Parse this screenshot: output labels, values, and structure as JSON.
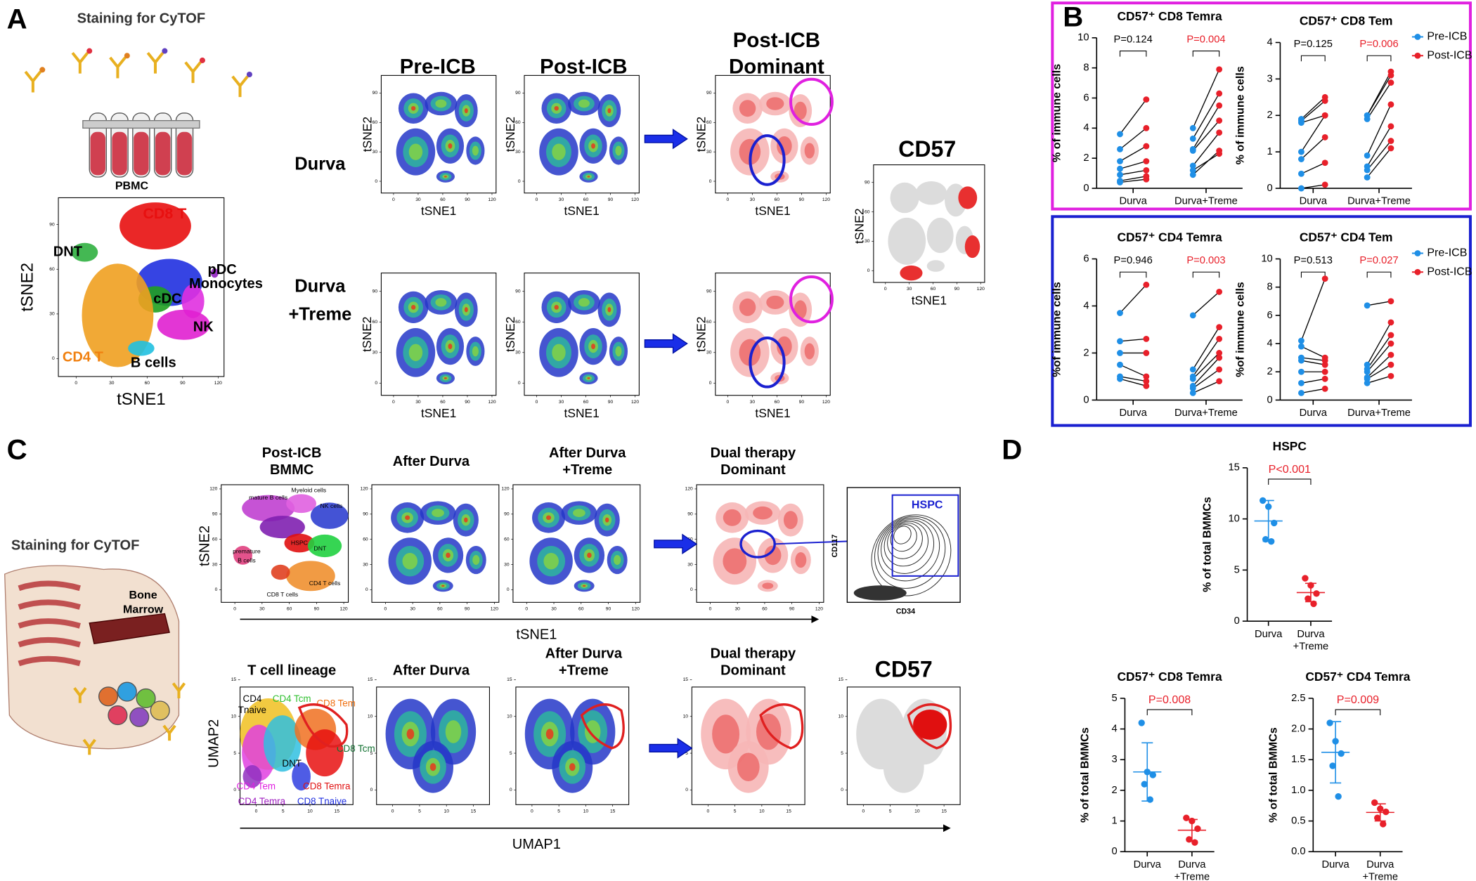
{
  "panels": {
    "a": {
      "letter": "A",
      "staining": "Staining for CyTOF",
      "pbmc": "PBMC",
      "tsne1": "tSNE1",
      "tsne2": "tSNE2",
      "clusters": [
        "CD8 T",
        "DNT",
        "pDC",
        "Monocytes",
        "cDC",
        "NK",
        "CD4 T",
        "B cells"
      ],
      "xticks": [
        0,
        30,
        60,
        90,
        120
      ],
      "yticks": [
        0,
        30,
        60,
        90
      ],
      "xlim": [
        -15,
        125
      ],
      "ylim": [
        -12,
        108
      ],
      "columns": [
        "Pre-ICB",
        "Post-ICB"
      ],
      "dominant": [
        "Post-ICB",
        "Dominant"
      ],
      "rows": [
        "Durva",
        [
          "Durva",
          "+Treme"
        ]
      ],
      "cd57": "CD57"
    },
    "b": {
      "letter": "B"
    },
    "c": {
      "letter": "C",
      "staining": "Staining for CyTOF",
      "bone_marrow": [
        "Bone",
        "Marrow"
      ],
      "row1_headers": [
        [
          "Post-ICB",
          "BMMC"
        ],
        [
          "After Durva"
        ],
        [
          "After Durva",
          "+Treme"
        ],
        [
          "Dual therapy",
          "Dominant"
        ]
      ],
      "row2_headers": [
        [
          "T cell lineage"
        ],
        [
          "After Durva"
        ],
        [
          "After Durva",
          "+Treme"
        ],
        [
          "Dual therapy",
          "Dominant"
        ],
        [
          "CD57"
        ]
      ],
      "bmmc_clusters": [
        "mature B cells",
        "Myeloid cells",
        "NK cells",
        "HSPC",
        "DNT",
        "premature",
        "B cells",
        "CD4 T cells",
        "CD8 T cells"
      ],
      "flow": {
        "gate": "HSPC",
        "y_label": "CD117",
        "x_label": "CD34"
      },
      "tsne1": "tSNE1",
      "tsne2": "tSNE2",
      "umap1": "UMAP1",
      "umap2": "UMAP2",
      "tsne_ticks": [
        0,
        30,
        60,
        90,
        120
      ],
      "tsne_lim": [
        -15,
        125
      ],
      "umap_ticks": [
        0,
        5,
        10,
        15
      ],
      "umap_xlim": [
        -3,
        18
      ],
      "umap_ylim": [
        -2,
        14
      ],
      "tcell_clusters": [
        "CD4",
        "Tnaive",
        "CD4 Tcm",
        "CD8 Tem",
        "CD8 Tcm",
        "DNT",
        "CD4 Tem",
        "CD8 Temra",
        "CD4 Temra",
        "CD8 Tnaive"
      ]
    },
    "d": {
      "letter": "D"
    }
  },
  "chart_data": [
    {
      "type": "paired",
      "title": "CD57⁺ CD8 Temra",
      "y_label": "% of immune cells",
      "categories": [
        "Durva",
        "Durva+Treme"
      ],
      "ylim": [
        0,
        10
      ],
      "yticks": [
        0,
        2,
        4,
        6,
        8,
        10
      ],
      "legend": false,
      "series": [
        {
          "color": "#1f8fe6",
          "values": [
            [
              3.6,
              2.6,
              1.8,
              1.3,
              0.9,
              0.5,
              0.4
            ],
            [
              4.0,
              3.3,
              2.6,
              2.5,
              1.5,
              0.9,
              1.2
            ]
          ]
        },
        {
          "color": "#e8202a",
          "values": [
            [
              5.9,
              4.0,
              2.8,
              1.8,
              1.2,
              0.8,
              0.6
            ],
            [
              7.9,
              6.3,
              5.5,
              4.5,
              3.7,
              2.5,
              2.3
            ]
          ]
        }
      ],
      "annotations": [
        {
          "text": "P=0.124",
          "color": "#000000"
        },
        {
          "text": "P=0.004",
          "color": "#e8202a"
        }
      ]
    },
    {
      "type": "paired",
      "title": "CD57⁺ CD8 Tem",
      "y_label": "% of immune cells",
      "categories": [
        "Durva",
        "Durva+Treme"
      ],
      "ylim": [
        0,
        4
      ],
      "yticks": [
        0,
        1,
        2,
        3,
        4
      ],
      "legend": true,
      "series": [
        {
          "name": "Pre-ICB",
          "color": "#1f8fe6",
          "values": [
            [
              1.9,
              1.85,
              1.8,
              1.0,
              0.8,
              0.4,
              0.0
            ],
            [
              2.0,
              2.0,
              1.9,
              0.9,
              0.6,
              0.5,
              0.3
            ]
          ]
        },
        {
          "name": "Post-ICB",
          "color": "#e8202a",
          "values": [
            [
              2.5,
              2.4,
              2.0,
              2.0,
              1.4,
              0.7,
              0.1
            ],
            [
              3.2,
              3.1,
              2.9,
              2.3,
              1.7,
              1.3,
              1.1
            ]
          ]
        }
      ],
      "annotations": [
        {
          "text": "P=0.125",
          "color": "#000000"
        },
        {
          "text": "P=0.006",
          "color": "#e8202a"
        }
      ]
    },
    {
      "type": "paired",
      "title": "CD57⁺ CD4 Temra",
      "y_label": "%of immune cells",
      "categories": [
        "Durva",
        "Durva+Treme"
      ],
      "ylim": [
        0,
        6
      ],
      "yticks": [
        0,
        2,
        4,
        6
      ],
      "legend": false,
      "series": [
        {
          "color": "#1f8fe6",
          "values": [
            [
              3.7,
              2.5,
              2.0,
              1.5,
              1.0,
              0.9
            ],
            [
              3.6,
              1.3,
              1.0,
              0.9,
              0.6,
              0.5,
              0.3
            ]
          ]
        },
        {
          "color": "#e8202a",
          "values": [
            [
              4.9,
              2.6,
              2.0,
              1.0,
              0.8,
              0.6
            ],
            [
              4.6,
              3.1,
              2.6,
              2.0,
              1.8,
              1.3,
              0.8
            ]
          ]
        }
      ],
      "annotations": [
        {
          "text": "P=0.946",
          "color": "#000000"
        },
        {
          "text": "P=0.003",
          "color": "#e8202a"
        }
      ]
    },
    {
      "type": "paired",
      "title": "CD57⁺ CD4 Tem",
      "y_label": "%of immune cells",
      "categories": [
        "Durva",
        "Durva+Treme"
      ],
      "ylim": [
        0,
        10
      ],
      "yticks": [
        0,
        2,
        4,
        6,
        8,
        10
      ],
      "legend": true,
      "series": [
        {
          "name": "Pre-ICB",
          "color": "#1f8fe6",
          "values": [
            [
              4.2,
              3.8,
              3.0,
              2.8,
              2.0,
              1.2,
              0.5
            ],
            [
              6.7,
              2.5,
              2.2,
              2.0,
              1.6,
              1.5,
              1.2
            ]
          ]
        },
        {
          "name": "Post-ICB",
          "color": "#e8202a",
          "values": [
            [
              8.6,
              3.0,
              2.8,
              2.5,
              2.0,
              1.5,
              0.8
            ],
            [
              7.0,
              5.5,
              4.6,
              4.0,
              3.2,
              2.5,
              1.7
            ]
          ]
        }
      ],
      "annotations": [
        {
          "text": "P=0.513",
          "color": "#000000"
        },
        {
          "text": "P=0.027",
          "color": "#e8202a"
        }
      ]
    },
    {
      "type": "strip",
      "title": "HSPC",
      "y_label": "% of total BMMCs",
      "categories": [
        "Durva",
        "Durva +Treme"
      ],
      "ylim": [
        0,
        15
      ],
      "yticks": [
        0,
        5,
        10,
        15
      ],
      "colors": [
        "#1f8fe6",
        "#e8202a"
      ],
      "values": [
        [
          11.8,
          11.2,
          9.6,
          8.0,
          7.8
        ],
        [
          4.2,
          3.5,
          2.7,
          2.2,
          1.7
        ]
      ],
      "means": [
        9.8,
        2.8
      ],
      "sds": [
        2.0,
        0.9
      ],
      "annotation": {
        "text": "P<0.001",
        "color": "#e8202a"
      }
    },
    {
      "type": "strip",
      "title": "CD57⁺ CD8 Temra",
      "y_label": "% of total BMMCs",
      "categories": [
        "Durva",
        "Durva +Treme"
      ],
      "ylim": [
        0,
        5
      ],
      "yticks": [
        0,
        1,
        2,
        3,
        4,
        5
      ],
      "colors": [
        "#1f8fe6",
        "#e8202a"
      ],
      "values": [
        [
          4.2,
          2.6,
          2.5,
          2.2,
          1.7
        ],
        [
          1.1,
          1.0,
          0.75,
          0.4,
          0.3
        ]
      ],
      "means": [
        2.6,
        0.7
      ],
      "sds": [
        0.95,
        0.35
      ],
      "annotation": {
        "text": "P=0.008",
        "color": "#e8202a"
      }
    },
    {
      "type": "strip",
      "title": "CD57⁺ CD4 Temra",
      "y_label": "% of total BMMCs",
      "categories": [
        "Durva",
        "Durva +Treme"
      ],
      "ylim": [
        0,
        2.5
      ],
      "yticks": [
        {
          "value": 0,
          "label": "0.0"
        },
        0.5,
        {
          "value": 1,
          "label": "1.0"
        },
        1.5,
        {
          "value": 2,
          "label": "2.0"
        },
        2.5
      ],
      "colors": [
        "#1f8fe6",
        "#e8202a"
      ],
      "values": [
        [
          2.1,
          1.8,
          1.6,
          1.4,
          0.9
        ],
        [
          0.8,
          0.7,
          0.65,
          0.55,
          0.45
        ]
      ],
      "means": [
        1.62,
        0.64
      ],
      "sds": [
        0.5,
        0.14
      ],
      "annotation": {
        "text": "P=0.009",
        "color": "#e8202a"
      }
    }
  ]
}
